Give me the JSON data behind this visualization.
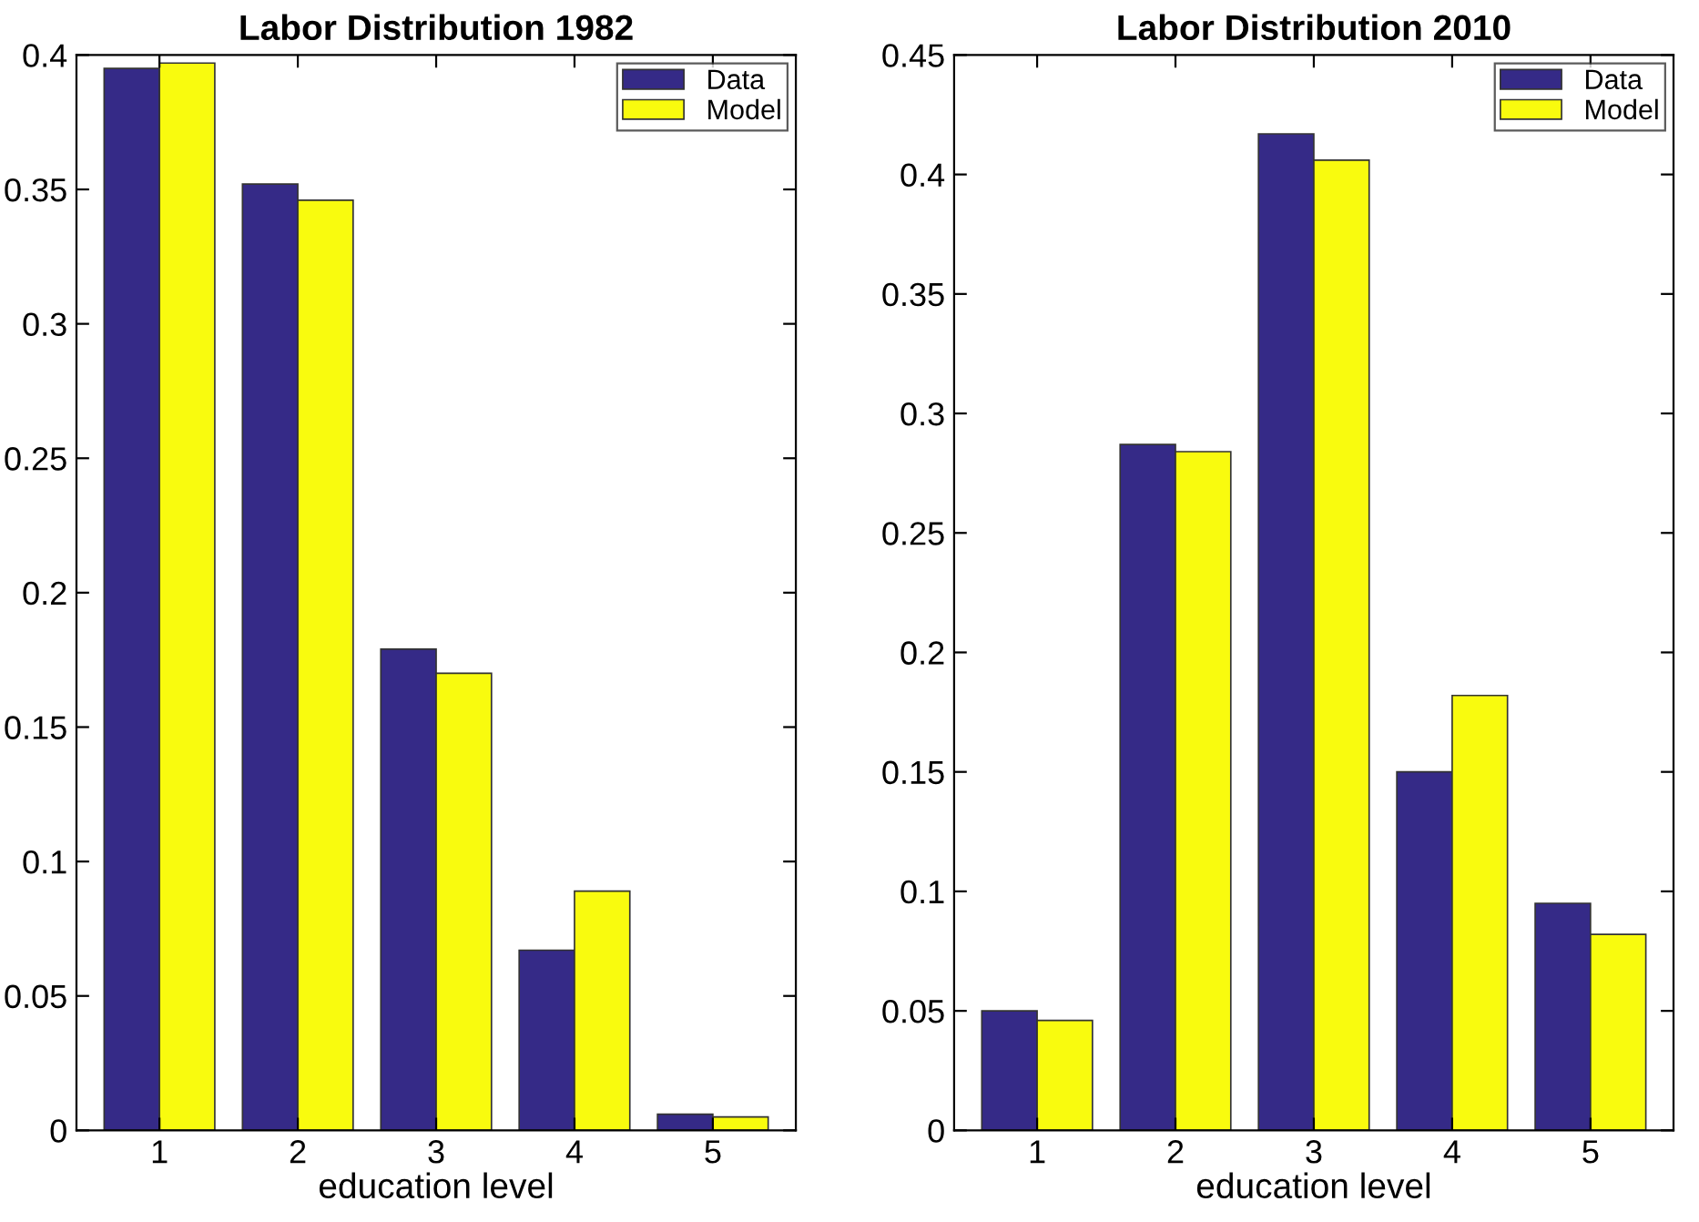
{
  "chart_data": [
    {
      "type": "bar",
      "title": "Labor Distribution 1982",
      "xlabel": "education level",
      "categories": [
        "1",
        "2",
        "3",
        "4",
        "5"
      ],
      "series": [
        {
          "name": "Data",
          "color": "#352a87",
          "values": [
            0.395,
            0.352,
            0.179,
            0.067,
            0.006
          ]
        },
        {
          "name": "Model",
          "color": "#f9fb0e",
          "values": [
            0.397,
            0.346,
            0.17,
            0.089,
            0.005
          ]
        }
      ],
      "ylim": [
        0,
        0.4
      ],
      "yticks": [
        0,
        0.05,
        0.1,
        0.15,
        0.2,
        0.25,
        0.3,
        0.35,
        0.4
      ],
      "grid": false,
      "legend": "top right"
    },
    {
      "type": "bar",
      "title": "Labor Distribution 2010",
      "xlabel": "education level",
      "categories": [
        "1",
        "2",
        "3",
        "4",
        "5"
      ],
      "series": [
        {
          "name": "Data",
          "color": "#352a87",
          "values": [
            0.05,
            0.287,
            0.417,
            0.15,
            0.095
          ]
        },
        {
          "name": "Model",
          "color": "#f9fb0e",
          "values": [
            0.046,
            0.284,
            0.406,
            0.182,
            0.082
          ]
        }
      ],
      "ylim": [
        0,
        0.45
      ],
      "yticks": [
        0,
        0.05,
        0.1,
        0.15,
        0.2,
        0.25,
        0.3,
        0.35,
        0.4,
        0.45
      ],
      "grid": false,
      "legend": "top right"
    }
  ]
}
